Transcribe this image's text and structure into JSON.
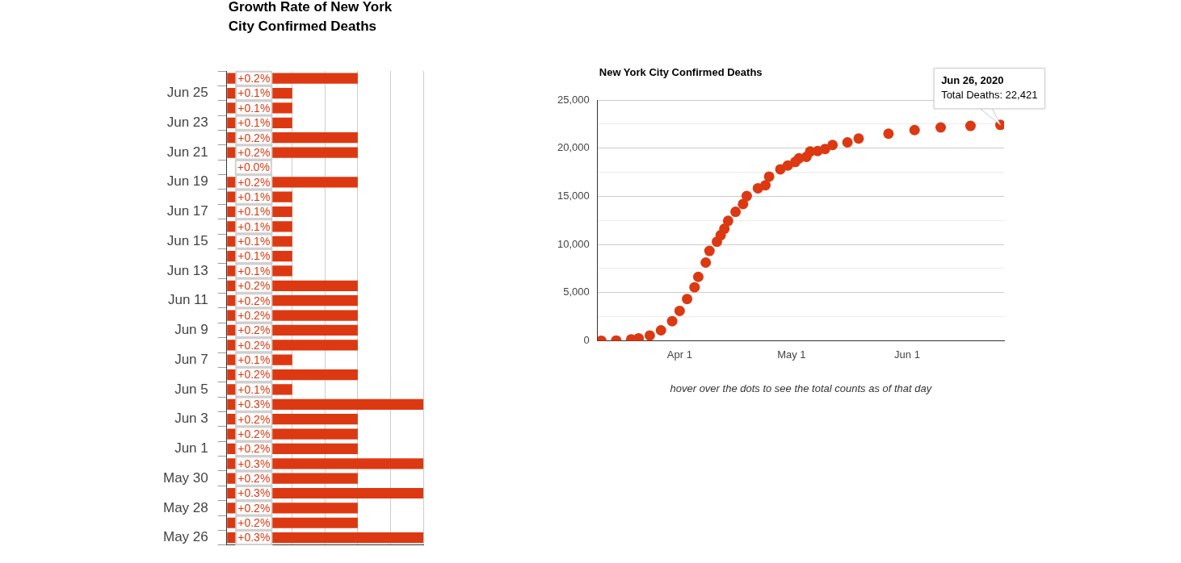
{
  "chart_data": [
    {
      "type": "bar",
      "orientation": "horizontal",
      "title": "Growth Rate of New York City Confirmed Deaths",
      "categories": [
        null,
        "Jun 25",
        null,
        "Jun 23",
        null,
        "Jun 21",
        null,
        "Jun 19",
        null,
        "Jun 17",
        null,
        "Jun 15",
        null,
        "Jun 13",
        null,
        "Jun 11",
        null,
        "Jun 9",
        null,
        "Jun 7",
        null,
        "Jun 5",
        null,
        "Jun 3",
        null,
        "Jun 1",
        null,
        "May 30",
        null,
        "May 28",
        null,
        "May 26"
      ],
      "values": [
        0.2,
        0.1,
        0.1,
        0.1,
        0.2,
        0.2,
        0.0,
        0.2,
        0.1,
        0.1,
        0.1,
        0.1,
        0.1,
        0.1,
        0.2,
        0.2,
        0.2,
        0.2,
        0.2,
        0.1,
        0.2,
        0.1,
        0.3,
        0.2,
        0.2,
        0.2,
        0.3,
        0.2,
        0.3,
        0.2,
        0.2,
        0.3
      ],
      "value_labels": [
        "+0.2%",
        "+0.1%",
        "+0.1%",
        "+0.1%",
        "+0.2%",
        "+0.2%",
        "+0.0%",
        "+0.2%",
        "+0.1%",
        "+0.1%",
        "+0.1%",
        "+0.1%",
        "+0.1%",
        "+0.1%",
        "+0.2%",
        "+0.2%",
        "+0.2%",
        "+0.2%",
        "+0.2%",
        "+0.1%",
        "+0.2%",
        "+0.1%",
        "+0.3%",
        "+0.2%",
        "+0.2%",
        "+0.2%",
        "+0.3%",
        "+0.2%",
        "+0.3%",
        "+0.2%",
        "+0.2%",
        "+0.3%"
      ],
      "color": "#dc3912",
      "grid": "x",
      "tick_labels": "y",
      "legend": false
    },
    {
      "type": "scatter",
      "title": "New York City Confirmed Deaths",
      "marker": "circle",
      "color": "#dc3912",
      "x": [
        "2020-03-11",
        "2020-03-15",
        "2020-03-19",
        "2020-03-21",
        "2020-03-24",
        "2020-03-27",
        "2020-03-30",
        "2020-04-01",
        "2020-04-03",
        "2020-04-05",
        "2020-04-06",
        "2020-04-08",
        "2020-04-09",
        "2020-04-11",
        "2020-04-12",
        "2020-04-13",
        "2020-04-14",
        "2020-04-16",
        "2020-04-18",
        "2020-04-19",
        "2020-04-22",
        "2020-04-24",
        "2020-04-25",
        "2020-04-28",
        "2020-04-30",
        "2020-05-02",
        "2020-05-03",
        "2020-05-05",
        "2020-05-06",
        "2020-05-08",
        "2020-05-10",
        "2020-05-12",
        "2020-05-16",
        "2020-05-19",
        "2020-05-27",
        "2020-06-03",
        "2020-06-10",
        "2020-06-18",
        "2020-06-26"
      ],
      "values": [
        0,
        20,
        130,
        250,
        540,
        1080,
        2030,
        3100,
        4330,
        5550,
        6630,
        8120,
        9330,
        10280,
        10960,
        11630,
        12450,
        13390,
        14200,
        15020,
        15830,
        16150,
        17050,
        17800,
        18200,
        18560,
        18940,
        19100,
        19650,
        19700,
        19920,
        20330,
        20600,
        21000,
        21500,
        21880,
        22150,
        22310,
        22421
      ],
      "xlim": [
        "2020-03-10",
        "2020-06-27"
      ],
      "xticks": [
        {
          "value": "2020-04-01",
          "label": "Apr 1"
        },
        {
          "value": "2020-05-01",
          "label": "May 1"
        },
        {
          "value": "2020-06-01",
          "label": "Jun 1"
        }
      ],
      "ylim": [
        0,
        25000
      ],
      "yticks": [
        {
          "value": 0,
          "label": "0"
        },
        {
          "value": 2500,
          "label": null
        },
        {
          "value": 5000,
          "label": "5,000"
        },
        {
          "value": 7500,
          "label": null
        },
        {
          "value": 10000,
          "label": "10,000"
        },
        {
          "value": 12500,
          "label": null
        },
        {
          "value": 15000,
          "label": "15,000"
        },
        {
          "value": 17500,
          "label": null
        },
        {
          "value": 20000,
          "label": "20,000"
        },
        {
          "value": 22500,
          "label": null
        },
        {
          "value": 25000,
          "label": "25,000"
        }
      ],
      "grid": "y",
      "legend": false,
      "annotations": [
        {
          "text": "Jun 26, 2020\nTotal Deaths: 22,421",
          "x": "2020-06-26",
          "y": 22421
        },
        "hover over the dots to see the total counts as of that day"
      ]
    }
  ]
}
